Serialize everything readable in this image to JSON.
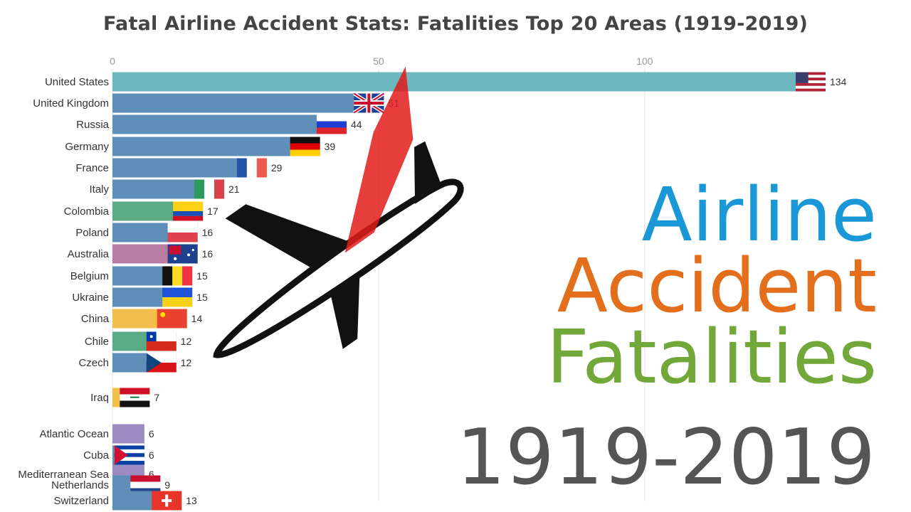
{
  "title": "Fatal Airline Accident Stats: Fatalities Top 20 Areas (1919-2019)",
  "overlay": {
    "line1": "Airline",
    "line2": "Accident",
    "line3": "Fatalities",
    "years": "1919-2019",
    "colors": {
      "line1": "#1a97d6",
      "line2": "#e36f1c",
      "line3": "#72a83a",
      "years": "#555555"
    }
  },
  "chart_data": {
    "type": "bar",
    "orientation": "horizontal",
    "title": "Fatal Airline Accident Stats: Fatalities Top 20 Areas (1919-2019)",
    "xlim": [
      0,
      134
    ],
    "xticks": [
      0,
      50,
      100
    ],
    "grid": true,
    "bars": [
      {
        "name": "United States",
        "value": 134,
        "color": "#6fb7bf",
        "flag": "us"
      },
      {
        "name": "United Kingdom",
        "value": 51,
        "color": "#5f8fb8",
        "flag": "uk"
      },
      {
        "name": "Russia",
        "value": 44,
        "color": "#5f8fb8",
        "flag": "ru"
      },
      {
        "name": "Germany",
        "value": 39,
        "color": "#5f8fb8",
        "flag": "de"
      },
      {
        "name": "France",
        "value": 29,
        "color": "#5f8fb8",
        "flag": "fr"
      },
      {
        "name": "Italy",
        "value": 21,
        "color": "#5f8fb8",
        "flag": "it"
      },
      {
        "name": "Colombia",
        "value": 17,
        "color": "#5aaa84",
        "flag": "co"
      },
      {
        "name": "Poland",
        "value": 16,
        "color": "#5f8fb8",
        "flag": "pl"
      },
      {
        "name": "Australia",
        "value": 16,
        "color": "#b87da0",
        "flag": "au"
      },
      {
        "name": "Belgium",
        "value": 15,
        "color": "#5f8fb8",
        "flag": "be"
      },
      {
        "name": "Ukraine",
        "value": 15,
        "color": "#5f8fb8",
        "flag": "ua"
      },
      {
        "name": "China",
        "value": 14,
        "color": "#f2c04a",
        "flag": "cn"
      },
      {
        "name": "Chile",
        "value": 12,
        "color": "#5aaa84",
        "flag": "cl"
      },
      {
        "name": "Czech",
        "value": 12,
        "color": "#5f8fb8",
        "flag": "cz"
      },
      {
        "name": "Iraq",
        "value": 7,
        "color": "#f2c04a",
        "flag": "iq"
      },
      {
        "name": "Atlantic Ocean",
        "value": 6,
        "color": "#9a8cc2",
        "flag": ""
      },
      {
        "name": "Cuba",
        "value": 6,
        "color": "#5f8fb8",
        "flag": "cu"
      },
      {
        "name": "Mediterranean Sea",
        "value": 6,
        "color": "#9a8cc2",
        "flag": ""
      },
      {
        "name": "Netherlands",
        "value": 9,
        "color": "#5f8fb8",
        "flag": "nl"
      },
      {
        "name": "Switzerland",
        "value": 13,
        "color": "#5f8fb8",
        "flag": "ch"
      }
    ]
  }
}
